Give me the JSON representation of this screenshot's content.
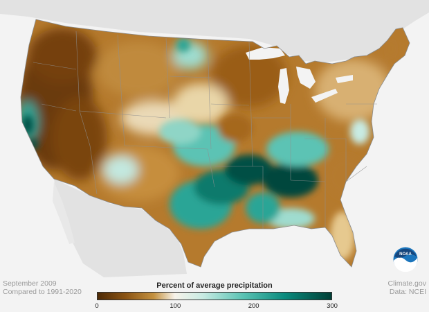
{
  "map": {
    "legend_title": "Percent of average precipitation",
    "legend_ticks": [
      "0",
      "100",
      "200",
      "300"
    ],
    "legend_tick_values": [
      0,
      100,
      200,
      300
    ],
    "legend_range": [
      0,
      300
    ],
    "legend_colors": [
      "#4e2a06",
      "#8b5414",
      "#c4913f",
      "#ecd8ab",
      "#f7f3ea",
      "#c8ebe3",
      "#5bc3b4",
      "#0a8b7e",
      "#003f36"
    ],
    "colors": {
      "very_dry": "#6b3a0b",
      "dry": "#a5671d",
      "mild_dry": "#d4a659",
      "near_normal": "#f2e6cf",
      "mild_wet": "#9fdccf",
      "wet": "#2aa596",
      "very_wet": "#004f44",
      "land_outside": "#dddddd",
      "water": "#f3f3f3"
    }
  },
  "caption": {
    "period": "September 2009",
    "baseline": "Compared to 1991-2020"
  },
  "credit": {
    "site": "Climate.gov",
    "source": "Data: NCEI"
  },
  "logo": {
    "text": "NOAA"
  }
}
